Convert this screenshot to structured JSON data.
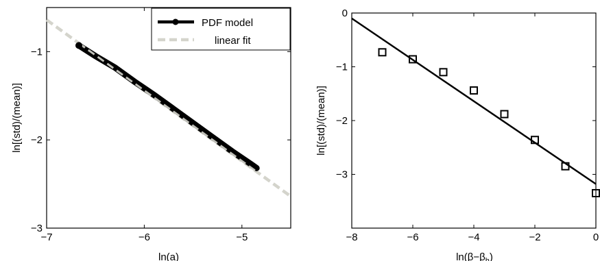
{
  "chart_data": [
    {
      "type": "line",
      "xlabel": "ln(a)",
      "ylabel": "ln[(std)/(mean)]",
      "xlim": [
        -7,
        -4.5
      ],
      "ylim": [
        -3,
        -0.5
      ],
      "xticks": [
        -7,
        -6,
        -5
      ],
      "yticks": [
        -3,
        -2,
        -1
      ],
      "grid": false,
      "legend_position": "top-right",
      "series": [
        {
          "name": "PDF model",
          "color": "#000000",
          "style": "thick solid line with start marker",
          "x": [
            -6.67,
            -6.5,
            -6.3,
            -6.1,
            -5.9,
            -5.7,
            -5.5,
            -5.3,
            -5.1,
            -4.9,
            -4.85
          ],
          "y": [
            -0.93,
            -1.05,
            -1.18,
            -1.34,
            -1.49,
            -1.65,
            -1.81,
            -1.97,
            -2.13,
            -2.28,
            -2.32
          ]
        },
        {
          "name": "linear fit",
          "color": "#d4d4cc",
          "style": "dashed",
          "x": [
            -7.0,
            -4.5
          ],
          "y": [
            -0.64,
            -2.64
          ]
        }
      ]
    },
    {
      "type": "scatter",
      "xlabel": "ln(β−β",
      "xlabel_sub": "h",
      "xlabel_close": ")",
      "ylabel": "ln[(std)/(mean)]",
      "xlim": [
        -8,
        0
      ],
      "ylim": [
        -4,
        0
      ],
      "xticks": [
        -8,
        -6,
        -4,
        -2,
        0
      ],
      "yticks": [
        -3,
        -2,
        -1,
        0
      ],
      "grid": false,
      "series": [
        {
          "marker": "square",
          "color": "#000000",
          "x": [
            -7,
            -6,
            -5,
            -4,
            -3,
            -2,
            -1,
            0
          ],
          "y": [
            -0.73,
            -0.86,
            -1.1,
            -1.44,
            -1.88,
            -2.36,
            -2.85,
            -3.35
          ]
        }
      ],
      "fit_line": {
        "x": [
          -8,
          0
        ],
        "y": [
          -0.1,
          -3.18
        ]
      }
    }
  ]
}
